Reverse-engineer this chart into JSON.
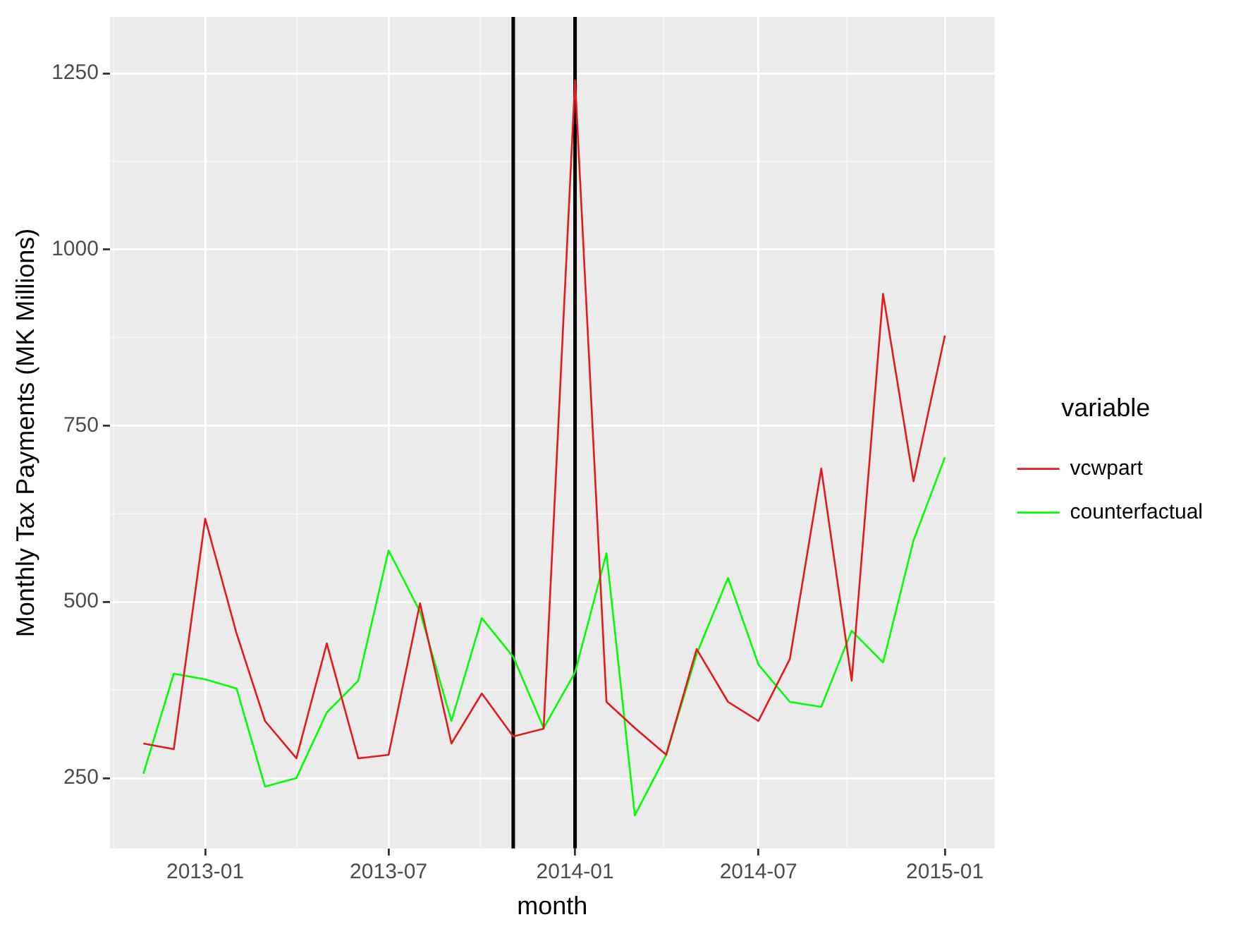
{
  "chart_data": {
    "type": "line",
    "xlabel": "month",
    "ylabel": "Monthly Tax Payments (MK Millions)",
    "legend_title": "variable",
    "x": [
      "2012-11",
      "2012-12",
      "2013-01",
      "2013-02",
      "2013-03",
      "2013-04",
      "2013-05",
      "2013-06",
      "2013-07",
      "2013-08",
      "2013-09",
      "2013-10",
      "2013-11",
      "2013-12",
      "2014-01",
      "2014-02",
      "2014-03",
      "2014-04",
      "2014-05",
      "2014-06",
      "2014-07",
      "2014-08",
      "2014-09",
      "2014-10",
      "2014-11",
      "2014-12",
      "2015-01"
    ],
    "series": [
      {
        "name": "vcwpart",
        "color": "#e41a1c",
        "values": [
          299,
          291,
          618,
          455,
          331,
          278,
          441,
          278,
          283,
          498,
          299,
          370,
          309,
          320,
          1240,
          358,
          321,
          283,
          433,
          358,
          331,
          419,
          689,
          388,
          937,
          671,
          878
        ]
      },
      {
        "name": "counterfactual",
        "color": "#00ff00",
        "values": [
          256,
          398,
          390,
          377,
          238,
          250,
          343,
          388,
          573,
          486,
          331,
          477,
          422,
          321,
          400,
          569,
          197,
          283,
          426,
          534,
          411,
          358,
          351,
          459,
          414,
          587,
          705
        ]
      }
    ],
    "xlim": [
      "2012-09-29",
      "2015-02-19"
    ],
    "xticks": [
      "2013-01",
      "2013-07",
      "2014-01",
      "2014-07",
      "2015-01"
    ],
    "ylim": [
      150,
      1330
    ],
    "yticks": [
      250,
      500,
      750,
      1000,
      1250
    ],
    "ref_lines": [
      {
        "axis": "x",
        "value": "2013-11",
        "color": "#000000"
      },
      {
        "axis": "x",
        "value": "2014-01",
        "color": "#000000"
      }
    ],
    "grid": true,
    "legend": "right",
    "marker": "none",
    "line_style": "solid"
  }
}
